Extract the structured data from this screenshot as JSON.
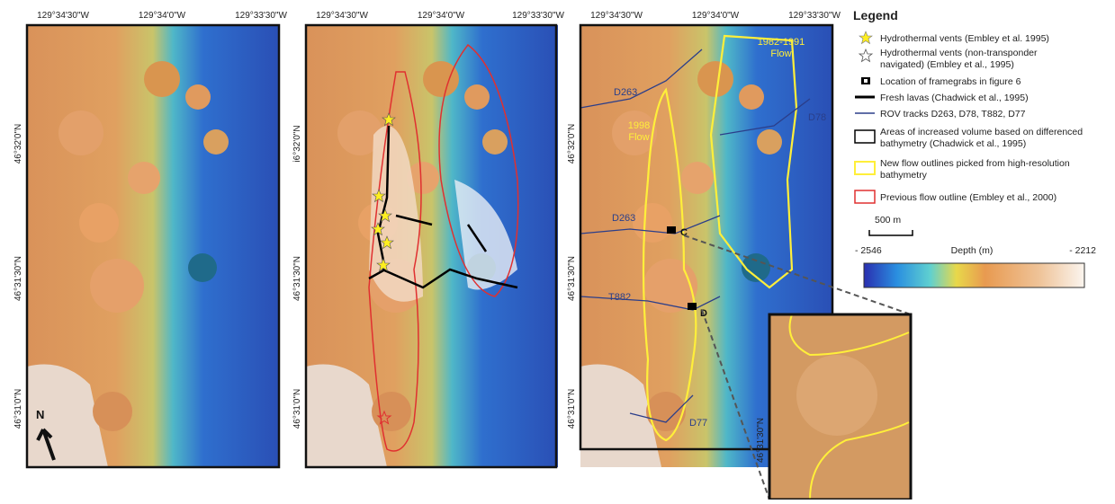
{
  "panels": [
    {
      "top_labels": [
        "129°34'30\"W",
        "129°34'0\"W",
        "129°33'30\"W"
      ],
      "left_labels": [
        "46°32'0\"N",
        "46°31'30\"N",
        "46°31'0\"N"
      ],
      "north": "N"
    },
    {
      "top_labels": [
        "129°34'30\"W",
        "129°34'0\"W",
        "129°33'30\"W"
      ],
      "left_labels": [
        "i6°32'0\"N",
        "46°31'30\"N",
        "46°31'0\"N"
      ]
    },
    {
      "top_labels": [
        "129°34'30\"W",
        "129°34'0\"W",
        "129°33'30\"W"
      ],
      "left_labels": [
        "46°32'0\"N",
        "46°31'30\"N",
        "46°31'0\"N"
      ],
      "annotations": [
        "1982-1991",
        "Flow",
        "1998",
        "Flow",
        "D263",
        "D78",
        "D263",
        "T882",
        "D77",
        "C",
        "D"
      ]
    }
  ],
  "inset": {
    "label": "46°31'30\"N"
  },
  "legend": {
    "title": "Legend",
    "items": [
      [
        "Hydrothermal vents (Embley et al. 1995)"
      ],
      [
        "Hydrothermal vents (non-transponder",
        "navigated) (Embley et al., 1995)"
      ],
      [
        "Location of framegrabs in figure 6"
      ],
      [
        "Fresh lavas (Chadwick et al., 1995)"
      ],
      [
        "ROV tracks D263, D78, T882, D77"
      ],
      [
        "Areas of increased volume based on differenced",
        "bathymetry (Chadwick et al., 1995)"
      ],
      [
        "New flow outlines picked from high-resolution",
        "bathymetry"
      ],
      [
        "Previous flow outline (Embley et al., 2000)"
      ]
    ]
  },
  "scale_bar": "500 m",
  "colorbar": {
    "min_label": "- 2546",
    "title": "Depth (m)",
    "max_label": "- 2212"
  }
}
